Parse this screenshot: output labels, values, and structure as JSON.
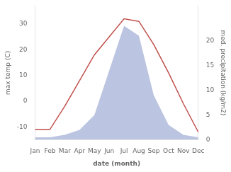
{
  "chart_data": {
    "type": "line",
    "categories": [
      "Jan",
      "Feb",
      "Mar",
      "Apr",
      "May",
      "Jun",
      "Jul",
      "Aug",
      "Sep",
      "Oct",
      "Nov",
      "Dec"
    ],
    "xlabel": "date (month)",
    "ylabel": "max temp (C)",
    "y2label": "med. precipitation (kg/m2)",
    "series": [
      {
        "type": "area",
        "axis": "y2",
        "color": "#bbc4e0",
        "values": [
          0.5,
          0.5,
          1,
          2,
          5,
          14,
          23,
          21,
          9,
          3,
          1,
          0.5
        ]
      },
      {
        "type": "line",
        "color": "#c0514d",
        "values": [
          -11,
          -11,
          -2,
          8,
          18,
          25,
          32,
          31,
          22,
          11,
          -1,
          -12
        ]
      }
    ],
    "ylim": [
      -15,
      37
    ],
    "yticks": [
      -10,
      0,
      10,
      20,
      30
    ],
    "y2lim": [
      0,
      27
    ],
    "y2ticks": [
      0,
      5,
      10,
      15,
      20
    ],
    "grid": false,
    "legend": false
  }
}
